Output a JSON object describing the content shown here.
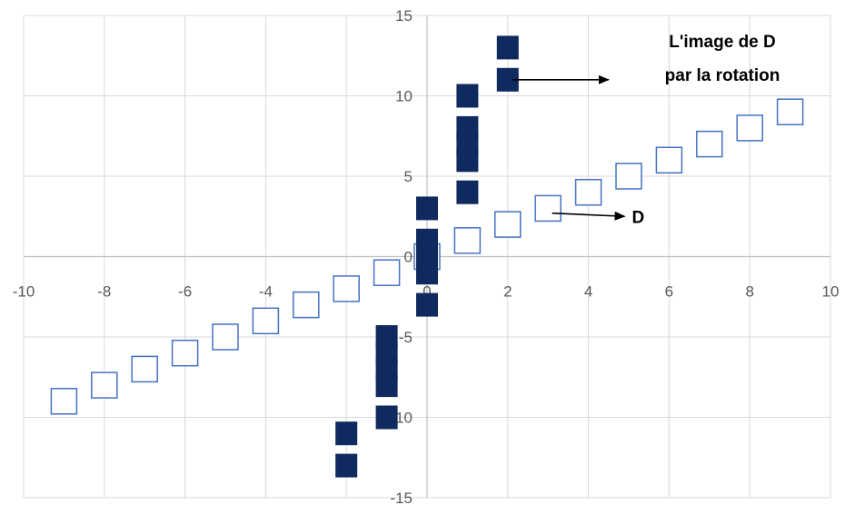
{
  "chart_data": {
    "type": "scatter",
    "title": "",
    "xlabel": "",
    "ylabel": "",
    "xlim": [
      -10,
      10
    ],
    "ylim": [
      -15,
      15
    ],
    "x_ticks": [
      -10,
      -8,
      -6,
      -4,
      -2,
      0,
      2,
      4,
      6,
      8,
      10
    ],
    "y_ticks": [
      -15,
      -10,
      -5,
      0,
      5,
      10,
      15
    ],
    "x_tick_labels": [
      "-10",
      "-8",
      "-6",
      "-4",
      "-2",
      "0",
      "2",
      "4",
      "6",
      "8",
      "10"
    ],
    "y_tick_labels": [
      "-15",
      "-10",
      "-5",
      "0",
      "5",
      "10",
      "15"
    ],
    "grid": true,
    "series": [
      {
        "marker": "hollow-square",
        "color": "#4472C4",
        "points": [
          [
            -9,
            -9
          ],
          [
            -8,
            -8
          ],
          [
            -7,
            -7
          ],
          [
            -6,
            -6
          ],
          [
            -5,
            -5
          ],
          [
            -4,
            -4
          ],
          [
            -3,
            -3
          ],
          [
            -2,
            -2
          ],
          [
            -1,
            -1
          ],
          [
            0,
            0
          ],
          [
            1,
            1
          ],
          [
            2,
            2
          ],
          [
            3,
            3
          ],
          [
            4,
            4
          ],
          [
            5,
            5
          ],
          [
            6,
            6
          ],
          [
            7,
            7
          ],
          [
            8,
            8
          ],
          [
            9,
            9
          ]
        ]
      },
      {
        "marker": "filled-square",
        "color": "#0E2A5E",
        "points": [
          [
            -2,
            -13
          ],
          [
            -2,
            -11
          ],
          [
            -1,
            -10
          ],
          [
            -1,
            -8
          ],
          [
            -1,
            -7
          ],
          [
            -1,
            -6
          ],
          [
            -1,
            -5
          ],
          [
            0,
            -3
          ],
          [
            0,
            -1
          ],
          [
            0,
            0
          ],
          [
            0,
            1
          ],
          [
            0,
            3
          ],
          [
            1,
            4
          ],
          [
            1,
            6
          ],
          [
            1,
            7
          ],
          [
            1,
            8
          ],
          [
            1,
            10
          ],
          [
            2,
            11
          ],
          [
            2,
            13
          ]
        ]
      }
    ],
    "annotations": [
      {
        "id": "rotation",
        "lines": [
          "L'image de D",
          "par la rotation"
        ],
        "arrow_from": [
          2.1,
          11
        ],
        "arrow_to": [
          4.5,
          11
        ]
      },
      {
        "id": "line-d",
        "lines": [
          "D"
        ],
        "arrow_from": [
          3.1,
          2.7
        ],
        "arrow_to": [
          4.9,
          2.5
        ]
      }
    ]
  }
}
